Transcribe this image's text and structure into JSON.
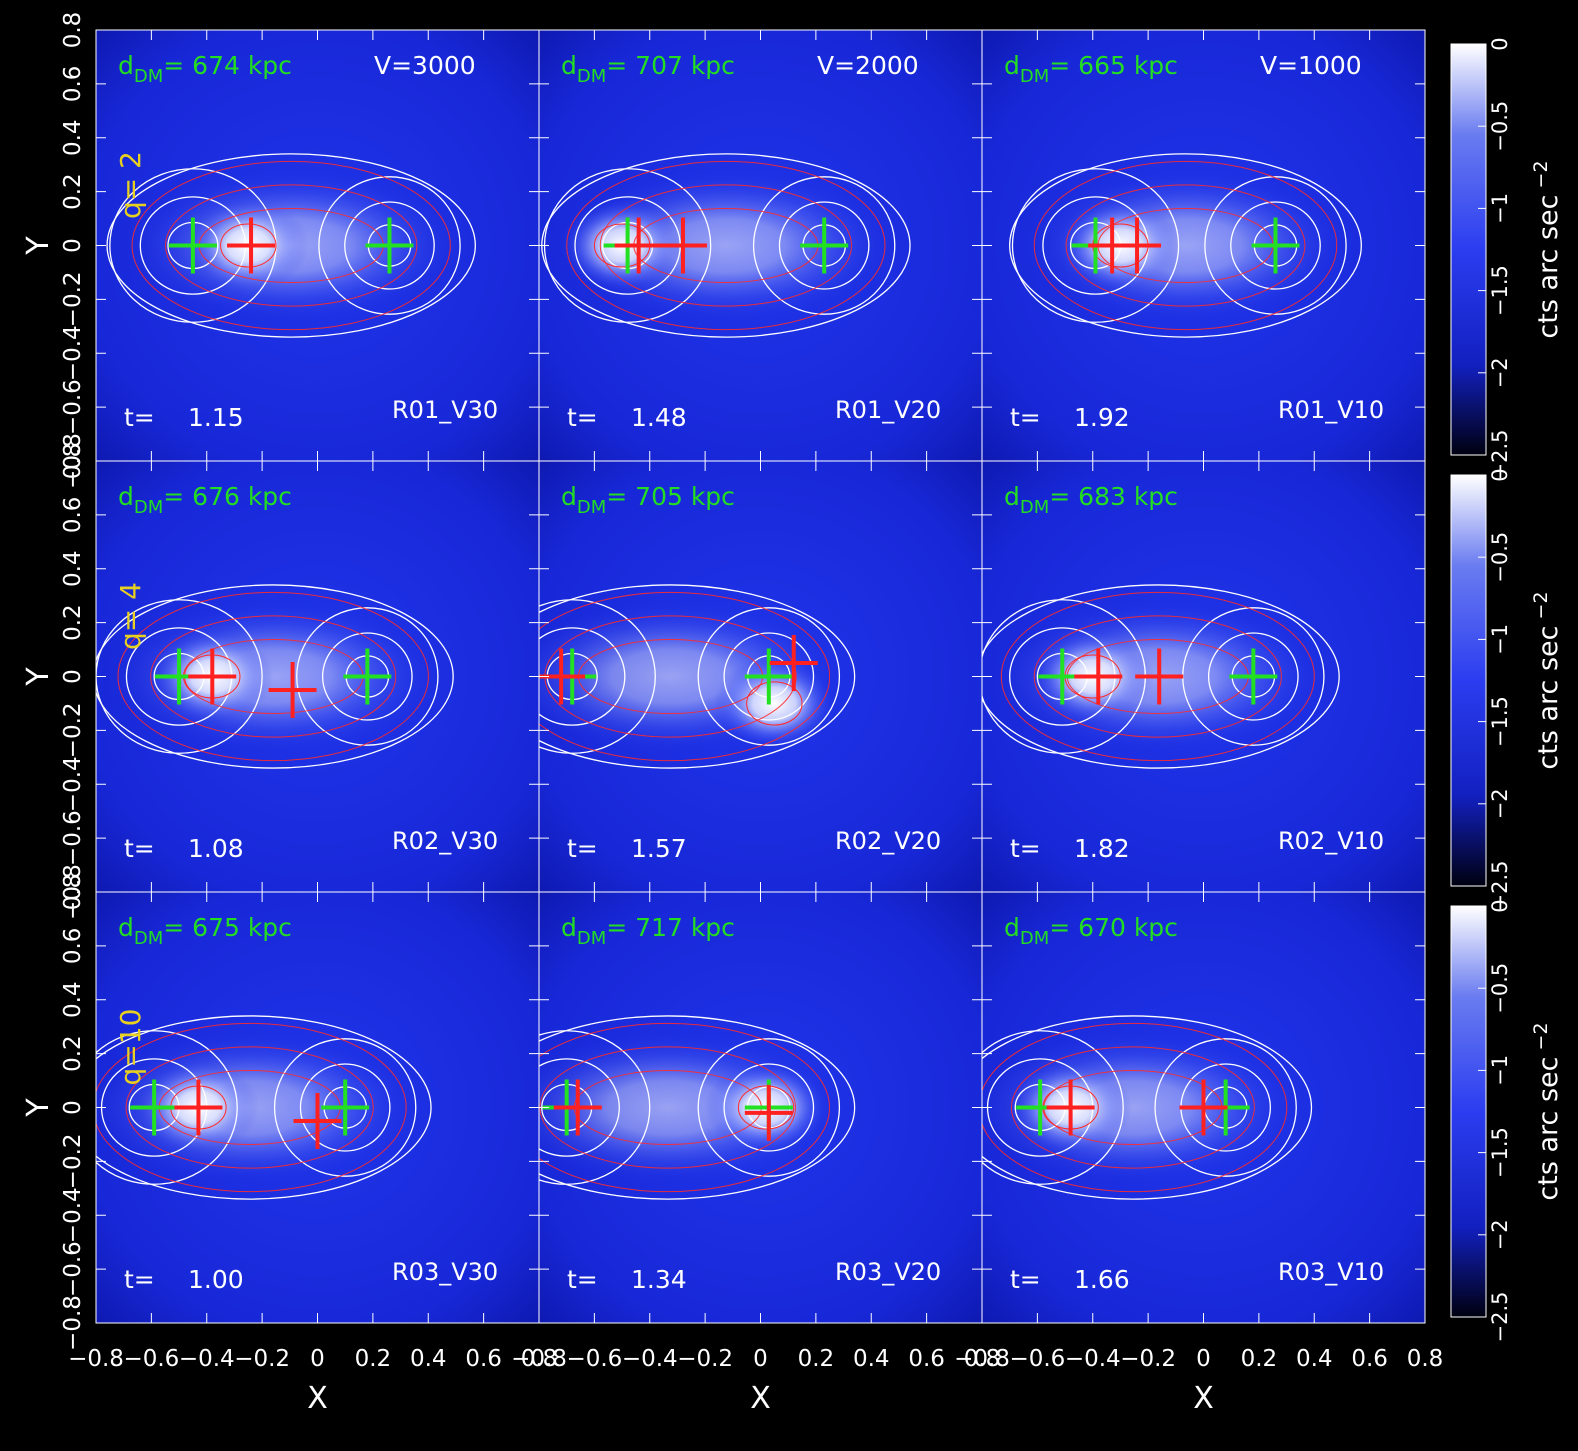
{
  "colors": {
    "background": "#000000",
    "panel_blue": "#1a2ee0",
    "panel_deep": "#0a10a8",
    "core": "#ffffff",
    "dm_contour": "#ffffff",
    "gas_contour": "#ff2a2a",
    "dm_cross": "#22e022",
    "gas_cross": "#ff2020",
    "label_green": "#22dd22",
    "label_yellow": "#e8d020",
    "text_white": "#ffffff"
  },
  "chart_data": {
    "type": "heatmap",
    "xlabel": "X",
    "ylabel": "Y",
    "xlim": [
      -0.8,
      0.8
    ],
    "ylim": [
      -0.8,
      0.8
    ],
    "tick_values": [
      -0.8,
      -0.6,
      -0.4,
      -0.2,
      0,
      0.2,
      0.4,
      0.6,
      0.8
    ],
    "tick_labels": [
      "−0.8",
      "−0.6",
      "−0.4",
      "−0.2",
      "0",
      "0.2",
      "0.4",
      "0.6",
      "0.8"
    ],
    "colorbar": {
      "label": "cts arc sec",
      "label_exponent": "−2",
      "range": [
        -2.5,
        0
      ],
      "tick_values": [
        0,
        -0.5,
        -1,
        -1.5,
        -2,
        -2.5
      ],
      "tick_labels": [
        "0",
        "−0.5",
        "−1",
        "−1.5",
        "−2",
        "−2.5"
      ]
    },
    "rows": [
      {
        "q_label": "q= 2",
        "panels": [
          {
            "name": "R01_V30",
            "d_prefix": "d",
            "d_sub": "DM",
            "d_text": "=  674  kpc",
            "v_label": "V=3000",
            "t_prefix": "t=",
            "t_value": "1.15",
            "core": [
              -0.25,
              0.0
            ],
            "dm_peaks": [
              [
                -0.45,
                0.0
              ],
              [
                0.26,
                0.0
              ]
            ],
            "gas_peaks": [
              [
                -0.24,
                0.0
              ]
            ]
          },
          {
            "name": "R01_V20",
            "d_prefix": "d",
            "d_sub": "DM",
            "d_text": "=  707  kpc",
            "v_label": "V=2000",
            "t_prefix": "t=",
            "t_value": "1.48",
            "core": [
              -0.5,
              0.0
            ],
            "dm_peaks": [
              [
                -0.48,
                0.0
              ],
              [
                0.23,
                0.0
              ]
            ],
            "gas_peaks": [
              [
                -0.44,
                0.0
              ],
              [
                -0.28,
                0.0
              ]
            ]
          },
          {
            "name": "R01_V10",
            "d_prefix": "d",
            "d_sub": "DM",
            "d_text": "=  665  kpc",
            "v_label": "V=1000",
            "t_prefix": "t=",
            "t_value": "1.92",
            "core": [
              -0.3,
              0.0
            ],
            "dm_peaks": [
              [
                -0.39,
                0.0
              ],
              [
                0.26,
                0.0
              ]
            ],
            "gas_peaks": [
              [
                -0.33,
                0.0
              ],
              [
                -0.24,
                0.0
              ]
            ]
          }
        ]
      },
      {
        "q_label": "q= 4",
        "panels": [
          {
            "name": "R02_V30",
            "d_prefix": "d",
            "d_sub": "DM",
            "d_text": "=  676  kpc",
            "v_label": "",
            "t_prefix": "t=",
            "t_value": "1.08",
            "core": [
              -0.38,
              0.0
            ],
            "dm_peaks": [
              [
                -0.5,
                0.0
              ],
              [
                0.18,
                0.0
              ]
            ],
            "gas_peaks": [
              [
                -0.38,
                0.0
              ],
              [
                -0.09,
                -0.05
              ]
            ]
          },
          {
            "name": "R02_V20",
            "d_prefix": "d",
            "d_sub": "DM",
            "d_text": "=  705  kpc",
            "v_label": "",
            "t_prefix": "t=",
            "t_value": "1.57",
            "core": [
              0.05,
              -0.1
            ],
            "dm_peaks": [
              [
                -0.68,
                0.0
              ],
              [
                0.03,
                0.0
              ]
            ],
            "gas_peaks": [
              [
                -0.72,
                0.0
              ],
              [
                0.12,
                0.05
              ]
            ]
          },
          {
            "name": "R02_V10",
            "d_prefix": "d",
            "d_sub": "DM",
            "d_text": "=  683  kpc",
            "v_label": "",
            "t_prefix": "t=",
            "t_value": "1.82",
            "core": [
              -0.4,
              0.0
            ],
            "dm_peaks": [
              [
                -0.51,
                0.0
              ],
              [
                0.18,
                0.0
              ]
            ],
            "gas_peaks": [
              [
                -0.38,
                0.0
              ],
              [
                -0.16,
                0.0
              ]
            ]
          }
        ]
      },
      {
        "q_label": "q=10",
        "panels": [
          {
            "name": "R03_V30",
            "d_prefix": "d",
            "d_sub": "DM",
            "d_text": "=  675  kpc",
            "v_label": "",
            "t_prefix": "t=",
            "t_value": "1.00",
            "core": [
              -0.43,
              0.0
            ],
            "dm_peaks": [
              [
                -0.59,
                0.0
              ],
              [
                0.1,
                0.0
              ]
            ],
            "gas_peaks": [
              [
                -0.43,
                0.0
              ],
              [
                0.0,
                -0.05
              ]
            ]
          },
          {
            "name": "R03_V20",
            "d_prefix": "d",
            "d_sub": "DM",
            "d_text": "=  717  kpc",
            "v_label": "",
            "t_prefix": "t=",
            "t_value": "1.34",
            "core": [
              0.02,
              0.0
            ],
            "dm_peaks": [
              [
                -0.7,
                0.0
              ],
              [
                0.03,
                0.0
              ]
            ],
            "gas_peaks": [
              [
                -0.66,
                0.0
              ],
              [
                0.03,
                -0.02
              ]
            ]
          },
          {
            "name": "R03_V10",
            "d_prefix": "d",
            "d_sub": "DM",
            "d_text": "=  670  kpc",
            "v_label": "",
            "t_prefix": "t=",
            "t_value": "1.66",
            "core": [
              -0.48,
              0.0
            ],
            "dm_peaks": [
              [
                -0.59,
                0.0
              ],
              [
                0.08,
                0.0
              ]
            ],
            "gas_peaks": [
              [
                -0.48,
                0.0
              ],
              [
                0.0,
                0.0
              ]
            ]
          }
        ]
      }
    ]
  }
}
